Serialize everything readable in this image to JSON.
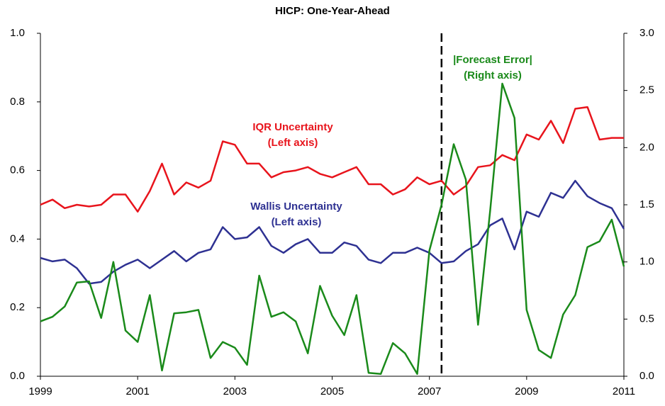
{
  "chart_data": {
    "type": "line",
    "title": "HICP: One-Year-Ahead",
    "x": [
      1999,
      1999.25,
      1999.5,
      1999.75,
      2000,
      2000.25,
      2000.5,
      2000.75,
      2001,
      2001.25,
      2001.5,
      2001.75,
      2002,
      2002.25,
      2002.5,
      2002.75,
      2003,
      2003.25,
      2003.5,
      2003.75,
      2004,
      2004.25,
      2004.5,
      2004.75,
      2005,
      2005.25,
      2005.5,
      2005.75,
      2006,
      2006.25,
      2006.5,
      2006.75,
      2007,
      2007.25,
      2007.5,
      2007.75,
      2008,
      2008.25,
      2008.5,
      2008.75,
      2009,
      2009.25,
      2009.5,
      2009.75,
      2010,
      2010.25,
      2010.5,
      2010.75,
      2011
    ],
    "series": [
      {
        "name": "IQR Uncertainty",
        "color": "#e8141c",
        "axis": "y",
        "values": [
          0.5,
          0.515,
          0.49,
          0.5,
          0.495,
          0.5,
          0.53,
          0.53,
          0.48,
          0.54,
          0.62,
          0.53,
          0.565,
          0.55,
          0.57,
          0.685,
          0.675,
          0.62,
          0.62,
          0.58,
          0.595,
          0.6,
          0.61,
          0.59,
          0.58,
          0.595,
          0.61,
          0.56,
          0.56,
          0.53,
          0.545,
          0.58,
          0.56,
          0.57,
          0.53,
          0.555,
          0.61,
          0.615,
          0.645,
          0.63,
          0.705,
          0.69,
          0.745,
          0.68,
          0.78,
          0.785,
          0.69,
          0.695,
          0.695
        ]
      },
      {
        "name": "Wallis Uncertainty",
        "color": "#2e3192",
        "axis": "y",
        "values": [
          0.345,
          0.335,
          0.34,
          0.315,
          0.27,
          0.275,
          0.305,
          0.325,
          0.34,
          0.315,
          0.34,
          0.365,
          0.335,
          0.36,
          0.37,
          0.435,
          0.4,
          0.405,
          0.435,
          0.38,
          0.36,
          0.385,
          0.4,
          0.36,
          0.36,
          0.39,
          0.38,
          0.34,
          0.33,
          0.36,
          0.36,
          0.375,
          0.36,
          0.33,
          0.335,
          0.365,
          0.385,
          0.44,
          0.46,
          0.37,
          0.48,
          0.465,
          0.535,
          0.52,
          0.57,
          0.525,
          0.505,
          0.49,
          0.43
        ]
      },
      {
        "name": "|Forecast Error|",
        "color": "#1a8a1a",
        "axis": "y2",
        "values": [
          0.48,
          0.52,
          0.61,
          0.82,
          0.83,
          0.51,
          1.0,
          0.4,
          0.3,
          0.71,
          0.05,
          0.55,
          0.56,
          0.58,
          0.16,
          0.3,
          0.25,
          0.1,
          0.88,
          0.52,
          0.56,
          0.48,
          0.2,
          0.79,
          0.53,
          0.36,
          0.71,
          0.03,
          0.02,
          0.29,
          0.2,
          0.02,
          1.1,
          1.5,
          2.03,
          1.72,
          0.45,
          1.45,
          2.56,
          2.26,
          0.58,
          0.23,
          0.16,
          0.54,
          0.71,
          1.13,
          1.18,
          1.37,
          0.96
        ]
      }
    ],
    "annotations": [
      {
        "series": 0,
        "lines": [
          "IQR Uncertainty",
          "(Left axis)"
        ]
      },
      {
        "series": 1,
        "lines": [
          "Wallis Uncertainty",
          "(Left axis)"
        ]
      },
      {
        "series": 2,
        "lines": [
          "|Forecast Error|",
          "(Right axis)"
        ]
      }
    ],
    "vline": 2007.25,
    "xlim": [
      1999,
      2011
    ],
    "xticks": [
      1999,
      2001,
      2003,
      2005,
      2007,
      2009,
      2011
    ],
    "ylim": [
      0,
      1
    ],
    "yticks": [
      {
        "value": 0,
        "label": "0.0"
      },
      0.2,
      0.4,
      0.6,
      0.8,
      {
        "value": 1,
        "label": "1.0"
      }
    ],
    "y2lim": [
      0,
      3
    ],
    "y2ticks": [
      {
        "value": 0,
        "label": "0.0"
      },
      0.5,
      {
        "value": 1,
        "label": "1.0"
      },
      1.5,
      {
        "value": 2,
        "label": "2.0"
      },
      2.5,
      {
        "value": 3,
        "label": "3.0"
      }
    ]
  }
}
